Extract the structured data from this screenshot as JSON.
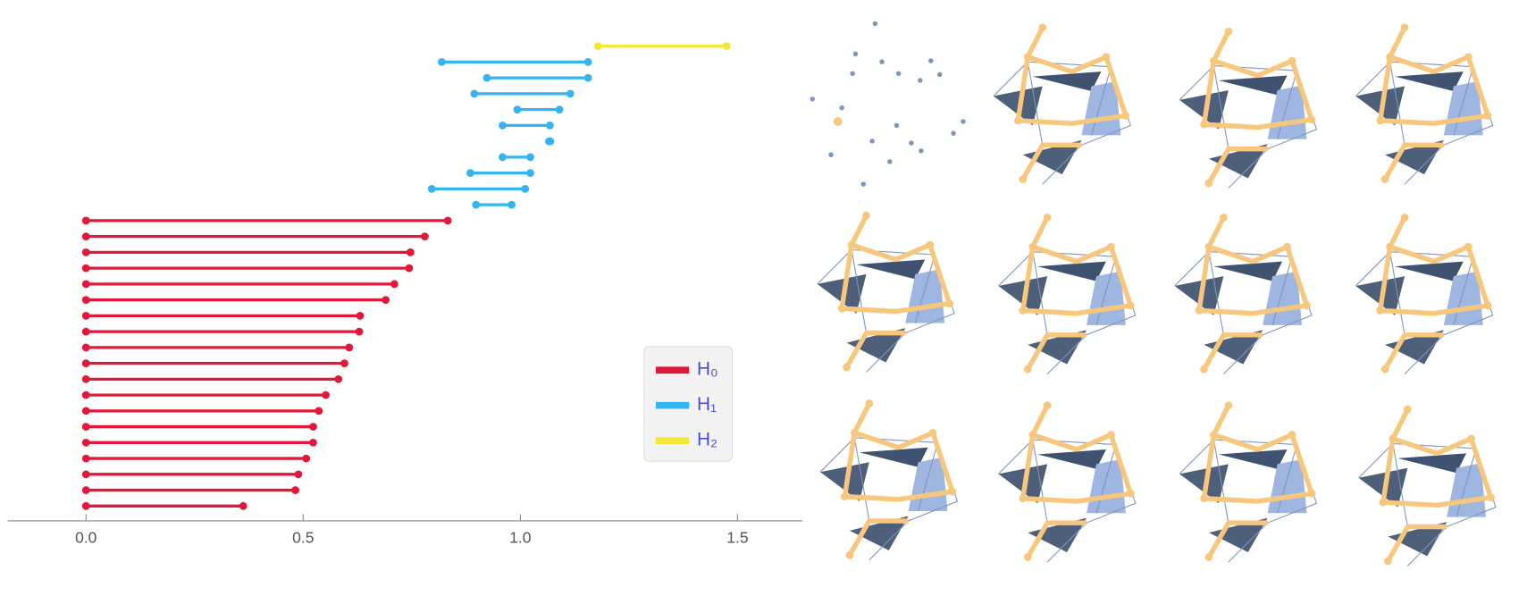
{
  "chart_data": {
    "type": "barcode",
    "xlim": [
      -0.18,
      1.65
    ],
    "xticks": [
      {
        "value": 0,
        "label": "0.0"
      },
      0.5,
      {
        "value": 1,
        "label": "1.0"
      },
      1.5
    ],
    "series": [
      {
        "name": "H₂",
        "color": "#f3e83a",
        "births": [
          1.179
        ],
        "deaths": [
          1.475
        ]
      },
      {
        "name": "H₁",
        "color": "#35b5f0",
        "births": [
          0.819,
          0.923,
          0.894,
          0.993,
          0.959,
          1.066,
          0.959,
          0.885,
          0.796,
          0.898
        ],
        "deaths": [
          1.156,
          1.156,
          1.115,
          1.09,
          1.068,
          1.069,
          1.023,
          1.023,
          1.011,
          0.98
        ]
      },
      {
        "name": "H₀",
        "color": "#e0193a",
        "births": [
          0,
          0,
          0,
          0,
          0,
          0,
          0,
          0,
          0,
          0,
          0,
          0,
          0,
          0,
          0,
          0,
          0,
          0,
          0
        ],
        "deaths": [
          0.833,
          0.78,
          0.747,
          0.744,
          0.71,
          0.69,
          0.631,
          0.629,
          0.606,
          0.595,
          0.581,
          0.552,
          0.536,
          0.523,
          0.523,
          0.507,
          0.489,
          0.482,
          0.362
        ]
      }
    ]
  }
}
